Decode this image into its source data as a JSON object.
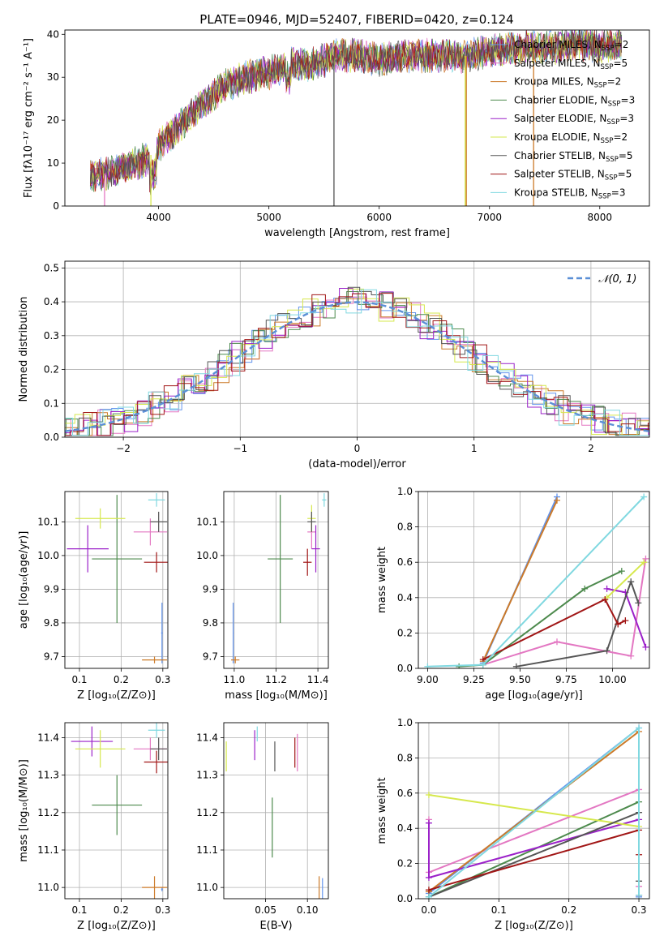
{
  "title": "PLATE=0946, MJD=52407, FIBERID=0420, z=0.124",
  "colors": [
    "#6495ed",
    "#e377c2",
    "#cc7a29",
    "#4d8a4d",
    "#9b21c9",
    "#d6e84c",
    "#555555",
    "#a11616",
    "#80d8e0"
  ],
  "chart_data": [
    {
      "panel": "spectrum",
      "type": "line",
      "xlabel": "wavelength [Angstrom, rest frame]",
      "ylabel": "Flux [fλ10⁻¹⁷ erg cm⁻² s⁻¹ A⁻¹]",
      "xlim": [
        3150,
        8450
      ],
      "ylim": [
        0,
        41
      ],
      "xticks": [
        4000,
        5000,
        6000,
        7000,
        8000
      ],
      "yticks": [
        0,
        10,
        20,
        30,
        40
      ],
      "continuum": {
        "x": [
          3380,
          3500,
          3700,
          3900,
          4000,
          4200,
          4400,
          4600,
          4800,
          5000,
          5200,
          5400,
          5600,
          5800,
          6000,
          6200,
          6400,
          6600,
          6800,
          7000,
          7200,
          7400,
          7600,
          7800,
          8000,
          8200
        ],
        "y": [
          7,
          7.5,
          9,
          11,
          14,
          19,
          24,
          28,
          30,
          31,
          33,
          33,
          35,
          35,
          34,
          35,
          35,
          35,
          35,
          36,
          37,
          37,
          37,
          38,
          37,
          38
        ]
      },
      "series": [
        {
          "name": "Chabrier MILES, N$_{SSP}$=2",
          "label_main": "Chabrier MILES, N",
          "label_sub": "SSP",
          "label_tail": "=2"
        },
        {
          "name": "Salpeter MILES, N$_{SSP}$=5",
          "label_main": "Salpeter MILES, N",
          "label_sub": "SSP",
          "label_tail": "=5"
        },
        {
          "name": "Kroupa MILES, N$_{SSP}$=2",
          "label_main": "Kroupa MILES, N",
          "label_sub": "SSP",
          "label_tail": "=2"
        },
        {
          "name": "Chabrier ELODIE, N$_{SSP}$=3",
          "label_main": "Chabrier ELODIE, N",
          "label_sub": "SSP",
          "label_tail": "=3"
        },
        {
          "name": "Salpeter ELODIE, N$_{SSP}$=3",
          "label_main": "Salpeter ELODIE, N",
          "label_sub": "SSP",
          "label_tail": "=3"
        },
        {
          "name": "Kroupa ELODIE, N$_{SSP}$=2",
          "label_main": "Kroupa ELODIE, N",
          "label_sub": "SSP",
          "label_tail": "=2"
        },
        {
          "name": "Chabrier STELIB, N$_{SSP}$=5",
          "label_main": "Chabrier STELIB, N",
          "label_sub": "SSP",
          "label_tail": "=5"
        },
        {
          "name": "Salpeter STELIB, N$_{SSP}$=5",
          "label_main": "Salpeter STELIB, N",
          "label_sub": "SSP",
          "label_tail": "=5"
        },
        {
          "name": "Kroupa STELIB, N$_{SSP}$=3",
          "label_main": "Kroupa STELIB, N",
          "label_sub": "SSP",
          "label_tail": "=3"
        }
      ],
      "drops": [
        {
          "x": 3510,
          "series": 1
        },
        {
          "x": 3930,
          "series": 5
        },
        {
          "x": 6780,
          "series": 5
        },
        {
          "x": 6790,
          "series": 2
        },
        {
          "x": 7400,
          "series": 2
        },
        {
          "x": 5590,
          "series": 6
        }
      ],
      "legend": "upper right"
    },
    {
      "panel": "residuals",
      "type": "step",
      "xlabel": "(data-model)/error",
      "ylabel": "Normed distribution",
      "xlim": [
        -2.5,
        2.5
      ],
      "ylim": [
        0,
        0.52
      ],
      "xticks": [
        -2,
        -1,
        0,
        1,
        2
      ],
      "yticks": [
        0,
        0.1,
        0.2,
        0.3,
        0.4,
        0.5
      ],
      "reference": {
        "name": "N(0,1)",
        "label": "𝒩(0, 1)",
        "mean": 0,
        "sigma": 1,
        "style": "dashed"
      },
      "grid": true
    },
    {
      "panel": "age-vs-Z",
      "type": "scatter",
      "xlabel": "Z [log₁₀(Z/Z⊙)]",
      "ylabel": "age  [log₁₀(age/yr)]",
      "xlim": [
        0.065,
        0.312
      ],
      "ylim": [
        9.665,
        10.19
      ],
      "xticks": [
        0.1,
        0.2,
        0.3
      ],
      "yticks": [
        9.7,
        9.8,
        9.9,
        10.0,
        10.1
      ],
      "points": [
        {
          "series": 0,
          "x": 0.298,
          "y": 9.77,
          "xerr": 0.002,
          "yerr": 0.09
        },
        {
          "series": 1,
          "x": 0.27,
          "y": 10.07,
          "xerr": 0.04,
          "yerr": 0.04
        },
        {
          "series": 2,
          "x": 0.28,
          "y": 9.69,
          "xerr": 0.03,
          "yerr": 0.01
        },
        {
          "series": 3,
          "x": 0.19,
          "y": 9.99,
          "xerr": 0.06,
          "yerr": 0.19
        },
        {
          "series": 4,
          "x": 0.12,
          "y": 10.02,
          "xerr": 0.05,
          "yerr": 0.07
        },
        {
          "series": 5,
          "x": 0.15,
          "y": 10.11,
          "xerr": 0.06,
          "yerr": 0.03
        },
        {
          "series": 6,
          "x": 0.29,
          "y": 10.1,
          "xerr": 0.02,
          "yerr": 0.03
        },
        {
          "series": 7,
          "x": 0.285,
          "y": 9.98,
          "xerr": 0.03,
          "yerr": 0.03
        },
        {
          "series": 8,
          "x": 0.285,
          "y": 10.165,
          "xerr": 0.02,
          "yerr": 0.02
        }
      ]
    },
    {
      "panel": "age-vs-mass",
      "type": "scatter",
      "xlabel": "mass [log₁₀(M/M⊙)]",
      "ylabel": "",
      "xlim": [
        10.95,
        11.45
      ],
      "ylim": [
        9.665,
        10.19
      ],
      "xticks": [
        11.0,
        11.2,
        11.4
      ],
      "yticks": [
        9.7,
        9.8,
        9.9,
        10.0,
        10.1
      ],
      "points": [
        {
          "series": 0,
          "x": 10.995,
          "y": 9.77,
          "xerr": 0.002,
          "yerr": 0.09
        },
        {
          "series": 1,
          "x": 11.37,
          "y": 10.07,
          "xerr": 0.02,
          "yerr": 0.05
        },
        {
          "series": 2,
          "x": 11.005,
          "y": 9.69,
          "xerr": 0.02,
          "yerr": 0.01
        },
        {
          "series": 3,
          "x": 11.22,
          "y": 9.99,
          "xerr": 0.06,
          "yerr": 0.19
        },
        {
          "series": 4,
          "x": 11.39,
          "y": 10.02,
          "xerr": 0.02,
          "yerr": 0.07
        },
        {
          "series": 5,
          "x": 11.37,
          "y": 10.11,
          "xerr": 0.02,
          "yerr": 0.04
        },
        {
          "series": 6,
          "x": 11.37,
          "y": 10.1,
          "xerr": 0.02,
          "yerr": 0.03
        },
        {
          "series": 7,
          "x": 11.35,
          "y": 9.98,
          "xerr": 0.02,
          "yerr": 0.04
        },
        {
          "series": 8,
          "x": 11.43,
          "y": 10.165,
          "xerr": 0.01,
          "yerr": 0.02
        }
      ]
    },
    {
      "panel": "weight-vs-age",
      "type": "line",
      "xlabel": "age  [log₁₀(age/yr)]",
      "ylabel": "mass weight",
      "xlim": [
        8.95,
        10.2
      ],
      "ylim": [
        0,
        1
      ],
      "xticks": [
        9.0,
        9.25,
        9.5,
        9.75,
        10.0
      ],
      "yticks": [
        0,
        0.2,
        0.4,
        0.6,
        0.8,
        1.0
      ],
      "grid": true,
      "lines": [
        {
          "series": 0,
          "x": [
            9.3,
            9.7
          ],
          "y": [
            0.03,
            0.97
          ]
        },
        {
          "series": 1,
          "x": [
            9.3,
            9.7,
            10.1,
            10.18
          ],
          "y": [
            0.02,
            0.15,
            0.07,
            0.62
          ]
        },
        {
          "series": 2,
          "x": [
            9.3,
            9.7
          ],
          "y": [
            0.04,
            0.95
          ]
        },
        {
          "series": 3,
          "x": [
            9.17,
            9.3,
            9.85,
            10.05
          ],
          "y": [
            0.01,
            0.02,
            0.45,
            0.55
          ]
        },
        {
          "series": 4,
          "x": [
            9.97,
            10.07,
            10.18
          ],
          "y": [
            0.45,
            0.43,
            0.12
          ]
        },
        {
          "series": 5,
          "x": [
            9.97,
            10.17
          ],
          "y": [
            0.4,
            0.6
          ]
        },
        {
          "series": 6,
          "x": [
            9.48,
            9.97,
            10.1,
            10.14
          ],
          "y": [
            0.01,
            0.1,
            0.49,
            0.37
          ]
        },
        {
          "series": 7,
          "x": [
            9.3,
            9.96,
            10.03,
            10.07
          ],
          "y": [
            0.05,
            0.39,
            0.25,
            0.27
          ]
        },
        {
          "series": 8,
          "x": [
            9.0,
            9.3,
            10.17
          ],
          "y": [
            0.01,
            0.02,
            0.97
          ]
        }
      ]
    },
    {
      "panel": "mass-vs-Z",
      "type": "scatter",
      "xlabel": "Z [log₁₀(Z/Z⊙)]",
      "ylabel": "mass [log₁₀(M/M⊙)]",
      "xlim": [
        0.065,
        0.312
      ],
      "ylim": [
        10.97,
        11.44
      ],
      "xticks": [
        0.1,
        0.2,
        0.3
      ],
      "yticks": [
        11.0,
        11.1,
        11.2,
        11.3,
        11.4
      ],
      "points": [
        {
          "series": 0,
          "x": 0.298,
          "y": 10.995,
          "xerr": 0.002,
          "yerr": 0.005
        },
        {
          "series": 1,
          "x": 0.27,
          "y": 11.37,
          "xerr": 0.04,
          "yerr": 0.03
        },
        {
          "series": 2,
          "x": 0.28,
          "y": 11.0,
          "xerr": 0.03,
          "yerr": 0.03
        },
        {
          "series": 3,
          "x": 0.19,
          "y": 11.22,
          "xerr": 0.06,
          "yerr": 0.08
        },
        {
          "series": 4,
          "x": 0.13,
          "y": 11.39,
          "xerr": 0.05,
          "yerr": 0.04
        },
        {
          "series": 5,
          "x": 0.15,
          "y": 11.37,
          "xerr": 0.06,
          "yerr": 0.05
        },
        {
          "series": 6,
          "x": 0.29,
          "y": 11.37,
          "xerr": 0.02,
          "yerr": 0.03
        },
        {
          "series": 7,
          "x": 0.285,
          "y": 11.335,
          "xerr": 0.03,
          "yerr": 0.03
        },
        {
          "series": 8,
          "x": 0.285,
          "y": 11.42,
          "xerr": 0.02,
          "yerr": 0.02
        }
      ]
    },
    {
      "panel": "mass-vs-ebv",
      "type": "scatter",
      "xlabel": "E(B-V)",
      "ylabel": "",
      "xlim": [
        0.0,
        0.125
      ],
      "ylim": [
        10.97,
        11.44
      ],
      "xticks": [
        0.05,
        0.1
      ],
      "yticks": [
        11.0,
        11.1,
        11.2,
        11.3,
        11.4
      ],
      "points": [
        {
          "series": 0,
          "x": 0.118,
          "y": 10.995,
          "xerr": 0,
          "yerr": 0.03
        },
        {
          "series": 1,
          "x": 0.088,
          "y": 11.36,
          "xerr": 0,
          "yerr": 0.05
        },
        {
          "series": 2,
          "x": 0.114,
          "y": 11.0,
          "xerr": 0,
          "yerr": 0.03
        },
        {
          "series": 3,
          "x": 0.058,
          "y": 11.16,
          "xerr": 0,
          "yerr": 0.08
        },
        {
          "series": 4,
          "x": 0.037,
          "y": 11.38,
          "xerr": 0,
          "yerr": 0.04
        },
        {
          "series": 5,
          "x": 0.003,
          "y": 11.35,
          "xerr": 0,
          "yerr": 0.04
        },
        {
          "series": 6,
          "x": 0.061,
          "y": 11.35,
          "xerr": 0,
          "yerr": 0.04
        },
        {
          "series": 7,
          "x": 0.085,
          "y": 11.36,
          "xerr": 0,
          "yerr": 0.04
        },
        {
          "series": 8,
          "x": 0.04,
          "y": 11.41,
          "xerr": 0,
          "yerr": 0.02
        }
      ]
    },
    {
      "panel": "weight-vs-Z",
      "type": "line",
      "xlabel": "Z [log₁₀(Z/Z⊙)]",
      "ylabel": "mass weight",
      "xlim": [
        -0.015,
        0.315
      ],
      "ylim": [
        0,
        1
      ],
      "xticks": [
        0.0,
        0.1,
        0.2,
        0.3
      ],
      "yticks": [
        0,
        0.2,
        0.4,
        0.6,
        0.8,
        1.0
      ],
      "grid": true,
      "lines": [
        {
          "series": 0,
          "x": [
            0.0,
            0.3,
            0.3
          ],
          "y": [
            0.03,
            0.97,
            0.01
          ]
        },
        {
          "series": 1,
          "x": [
            0.0,
            0.0,
            0.3,
            0.3
          ],
          "y": [
            0.45,
            0.15,
            0.62,
            0.07
          ]
        },
        {
          "series": 2,
          "x": [
            0.0,
            0.3,
            0.3
          ],
          "y": [
            0.04,
            0.95,
            0.02
          ]
        },
        {
          "series": 3,
          "x": [
            0.0,
            0.3,
            0.3
          ],
          "y": [
            0.01,
            0.55,
            0.02
          ]
        },
        {
          "series": 4,
          "x": [
            0.0,
            0.0,
            0.3,
            0.3
          ],
          "y": [
            0.43,
            0.12,
            0.45,
            0.02
          ]
        },
        {
          "series": 5,
          "x": [
            0.0,
            0.3
          ],
          "y": [
            0.59,
            0.41
          ]
        },
        {
          "series": 6,
          "x": [
            0.0,
            0.3,
            0.3
          ],
          "y": [
            0.01,
            0.49,
            0.1
          ]
        },
        {
          "series": 7,
          "x": [
            0.0,
            0.3,
            0.3
          ],
          "y": [
            0.05,
            0.39,
            0.25
          ]
        },
        {
          "series": 8,
          "x": [
            0.0,
            0.3,
            0.3
          ],
          "y": [
            0.01,
            0.97,
            0.02
          ]
        }
      ]
    }
  ]
}
